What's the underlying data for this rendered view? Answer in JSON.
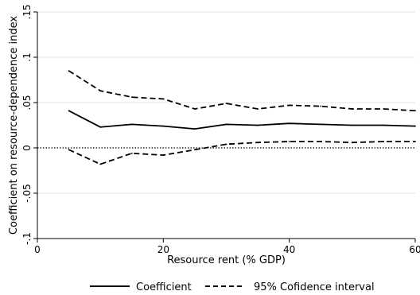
{
  "chart_data": {
    "type": "line",
    "xlabel": "Resource rent (% GDP)",
    "ylabel": "Coefficient on resource-dependence index",
    "xlim": [
      0,
      60
    ],
    "ylim": [
      -0.1,
      0.15
    ],
    "x_ticks": [
      "0",
      "20",
      "40",
      "60"
    ],
    "x_tick_values": [
      0,
      20,
      40,
      60
    ],
    "y_ticks": [
      "-.1",
      "-.05",
      "0",
      ".05",
      ".1",
      ".15"
    ],
    "y_tick_values": [
      -0.1,
      -0.05,
      0,
      0.05,
      0.1,
      0.15
    ],
    "grid": "horizontal",
    "reference_line": {
      "y": 0,
      "style": "dotted"
    },
    "legend_position": "bottom",
    "x": [
      5,
      10,
      15,
      20,
      25,
      30,
      35,
      40,
      45,
      50,
      55,
      60
    ],
    "series": [
      {
        "name": "Coefficient",
        "style": "solid",
        "values": [
          0.041,
          0.023,
          0.026,
          0.024,
          0.021,
          0.026,
          0.025,
          0.027,
          0.026,
          0.025,
          0.025,
          0.024
        ]
      },
      {
        "name": "95% Cofidence interval",
        "style": "dashed",
        "values": [
          0.085,
          0.063,
          0.056,
          0.054,
          0.043,
          0.049,
          0.043,
          0.047,
          0.046,
          0.043,
          0.043,
          0.041
        ]
      },
      {
        "name": "",
        "style": "dashed",
        "values": [
          -0.002,
          -0.018,
          -0.006,
          -0.008,
          -0.002,
          0.004,
          0.006,
          0.007,
          0.007,
          0.006,
          0.007,
          0.007
        ]
      }
    ]
  }
}
